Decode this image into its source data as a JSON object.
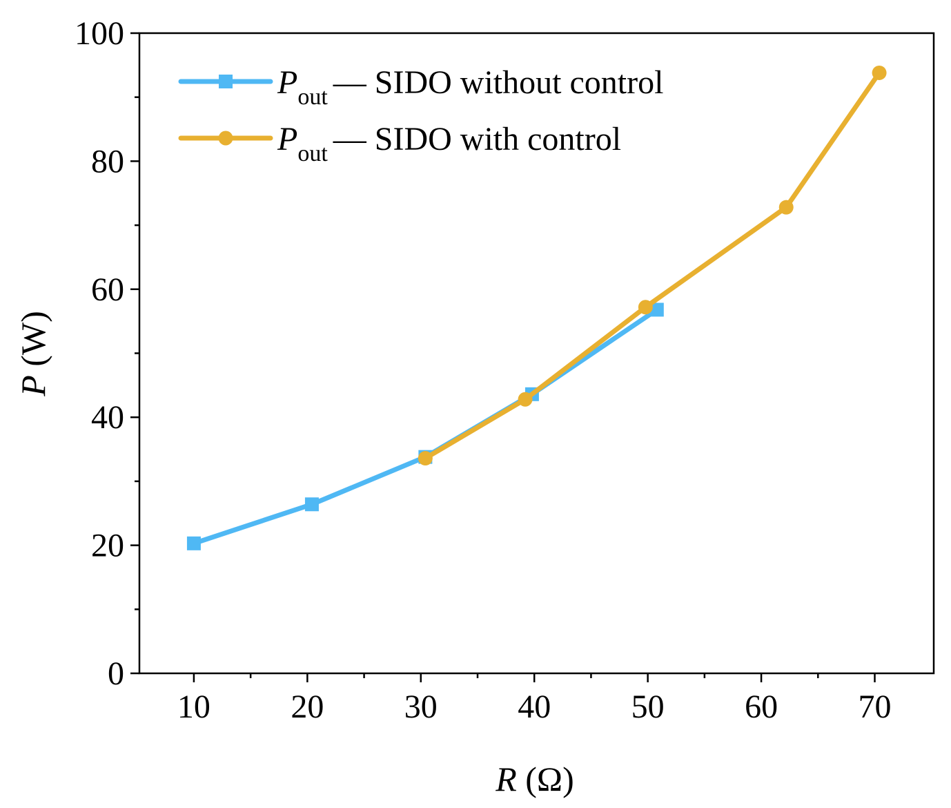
{
  "chart_data": {
    "type": "line",
    "title": "",
    "xlabel": {
      "var": "R",
      "unit": " (Ω)"
    },
    "ylabel": {
      "var": "P",
      "unit": " (W)"
    },
    "xlim": [
      5.2,
      75.2
    ],
    "ylim": [
      0,
      100
    ],
    "xticks": [
      10,
      20,
      30,
      40,
      50,
      60,
      70
    ],
    "xminor": [
      15,
      25,
      35,
      45,
      55,
      65
    ],
    "yticks": [
      0,
      20,
      40,
      60,
      80,
      100
    ],
    "yminor": [
      10,
      30,
      50,
      70,
      90
    ],
    "grid": false,
    "legend_position": "top-left",
    "series": [
      {
        "name": "SIDO without control",
        "legend_var": "P",
        "legend_sub": "out",
        "legend_dash": "—",
        "color": "#4FB8F4",
        "marker": "square",
        "x": [
          10.0,
          20.4,
          30.4,
          39.8,
          50.8
        ],
        "y": [
          20.3,
          26.4,
          33.8,
          43.6,
          56.8
        ]
      },
      {
        "name": "SIDO with control",
        "legend_var": "P",
        "legend_sub": "out",
        "legend_dash": "—",
        "color": "#E8B030",
        "marker": "circle",
        "x": [
          30.4,
          39.2,
          49.8,
          62.2,
          70.4
        ],
        "y": [
          33.6,
          42.8,
          57.2,
          72.8,
          93.8
        ]
      }
    ]
  }
}
